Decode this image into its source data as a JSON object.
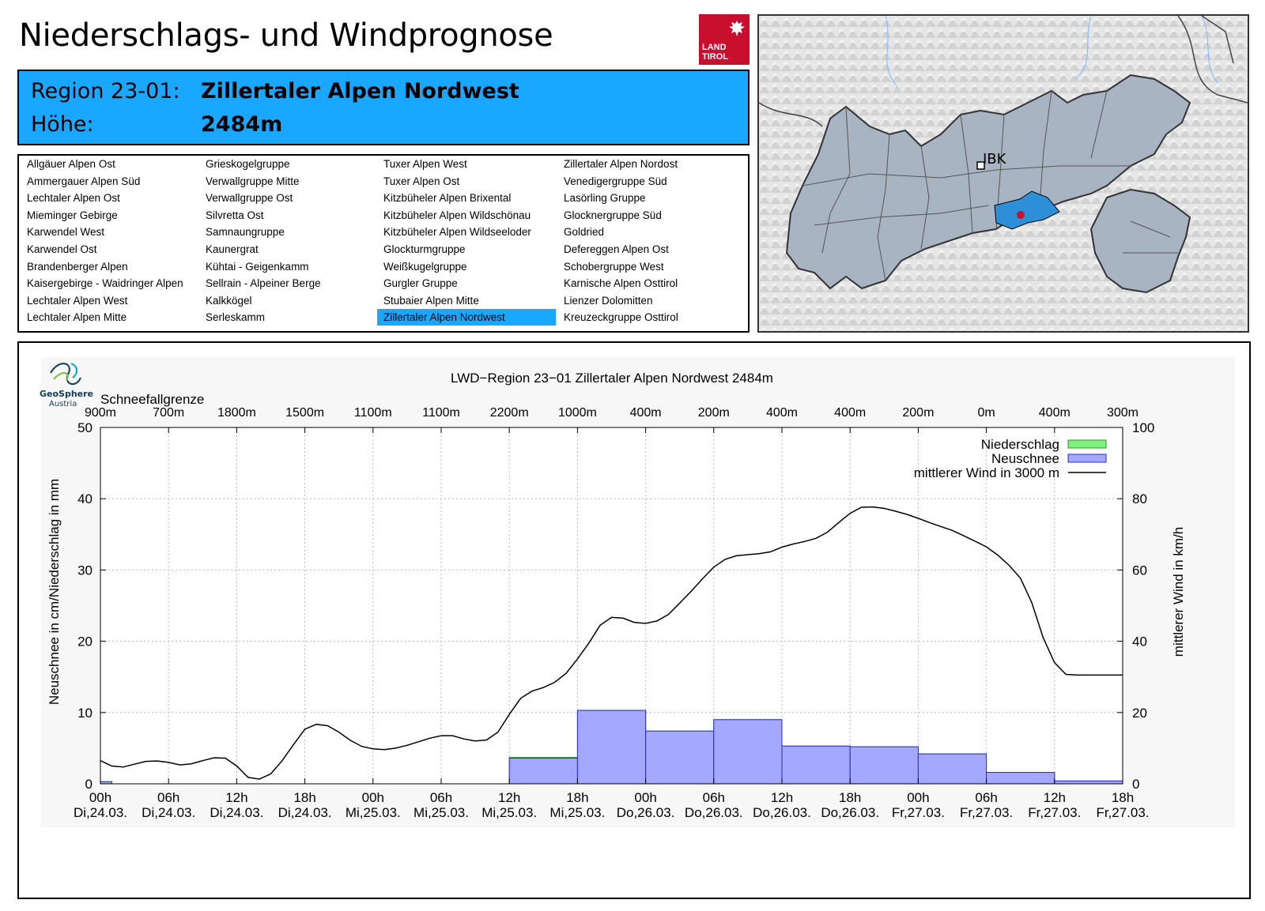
{
  "page": {
    "title": "Niederschlags- und Windprognose",
    "logo_text": [
      "LAND",
      "TIROL"
    ]
  },
  "region": {
    "region_label": "Region 23-01:",
    "region_name": "Zillertaler Alpen Nordwest",
    "height_label": "Höhe:",
    "height_value": "2484m"
  },
  "region_list": {
    "selected": "Zillertaler Alpen Nordwest",
    "columns": [
      [
        "Allgäuer Alpen Ost",
        "Ammergauer Alpen Süd",
        "Lechtaler Alpen Ost",
        "Mieminger Gebirge",
        "Karwendel West",
        "Karwendel Ost",
        "Brandenberger Alpen",
        "Kaisergebirge - Waidringer Alpen",
        "Lechtaler Alpen West",
        "Lechtaler Alpen Mitte"
      ],
      [
        "Grieskogelgruppe",
        "Verwallgruppe Mitte",
        "Verwallgruppe Ost",
        "Silvretta Ost",
        "Samnaungruppe",
        "Kaunergrat",
        "Kühtai - Geigenkamm",
        "Sellrain - Alpeiner Berge",
        "Kalkkögel",
        "Serleskamm"
      ],
      [
        "Tuxer Alpen West",
        "Tuxer Alpen Ost",
        "Kitzbüheler Alpen Brixental",
        "Kitzbüheler Alpen Wildschönau",
        "Kitzbüheler Alpen Wildseeloder",
        "Glockturmgruppe",
        "Weißkugelgruppe",
        "Gurgler Gruppe",
        "Stubaier Alpen Mitte",
        "Zillertaler Alpen Nordwest"
      ],
      [
        "Zillertaler Alpen Nordost",
        "Venedigergruppe Süd",
        "Lasörling Gruppe",
        "Glocknergruppe Süd",
        "Goldried",
        "Defereggen Alpen Ost",
        "Schobergruppe West",
        "Karnische Alpen Osttirol",
        "Lienzer Dolomitten",
        "Kreuzeckgruppe Osttirol"
      ]
    ]
  },
  "map": {
    "city_label": "IBK"
  },
  "colors": {
    "region_bg": "#1aa7ff",
    "snow_bar": "#a5a8ff",
    "precip_bar": "#7cf27c",
    "wind_line": "#000000",
    "plot_bg": "#f7f7f7"
  },
  "chart_data": {
    "type": "bar",
    "title": "LWD−Region 23−01 Zillertaler Alpen Nordwest 2484m",
    "xlabel": "",
    "ylabel": "Neuschnee in cm/Niederschlag in mm",
    "y2label": "mittlerer Wind in km/h",
    "ylim": [
      0,
      50
    ],
    "y2lim": [
      0,
      100
    ],
    "yticks": [
      0,
      10,
      20,
      30,
      40,
      50
    ],
    "y2ticks": [
      0,
      20,
      40,
      60,
      80,
      100
    ],
    "xlim_hours": [
      0,
      90
    ],
    "x_ticks": [
      {
        "h": 0,
        "time": "00h",
        "date": "Di,24.03."
      },
      {
        "h": 6,
        "time": "06h",
        "date": "Di,24.03."
      },
      {
        "h": 12,
        "time": "12h",
        "date": "Di,24.03."
      },
      {
        "h": 18,
        "time": "18h",
        "date": "Di,24.03."
      },
      {
        "h": 24,
        "time": "00h",
        "date": "Mi,25.03."
      },
      {
        "h": 30,
        "time": "06h",
        "date": "Mi,25.03."
      },
      {
        "h": 36,
        "time": "12h",
        "date": "Mi,25.03."
      },
      {
        "h": 42,
        "time": "18h",
        "date": "Mi,25.03."
      },
      {
        "h": 48,
        "time": "00h",
        "date": "Do,26.03."
      },
      {
        "h": 54,
        "time": "06h",
        "date": "Do,26.03."
      },
      {
        "h": 60,
        "time": "12h",
        "date": "Do,26.03."
      },
      {
        "h": 66,
        "time": "18h",
        "date": "Do,26.03."
      },
      {
        "h": 72,
        "time": "00h",
        "date": "Fr,27.03."
      },
      {
        "h": 78,
        "time": "06h",
        "date": "Fr,27.03."
      },
      {
        "h": 84,
        "time": "12h",
        "date": "Fr,27.03."
      },
      {
        "h": 90,
        "time": "18h",
        "date": "Fr,27.03."
      }
    ],
    "snowline_title": "Schneefallgrenze",
    "snowline": [
      "900m",
      "700m",
      "1800m",
      "1500m",
      "1100m",
      "1100m",
      "2200m",
      "1000m",
      "400m",
      "200m",
      "400m",
      "400m",
      "200m",
      "0m",
      "400m",
      "300m"
    ],
    "series": [
      {
        "name": "Niederschlag",
        "kind": "bar",
        "bars": [
          {
            "start": 0,
            "end": 1,
            "value": 0.3
          },
          {
            "start": 36,
            "end": 42,
            "value": 3.7
          },
          {
            "start": 42,
            "end": 48,
            "value": 10.3
          },
          {
            "start": 48,
            "end": 54,
            "value": 7.4
          },
          {
            "start": 54,
            "end": 60,
            "value": 9.0
          },
          {
            "start": 60,
            "end": 66,
            "value": 5.3
          },
          {
            "start": 66,
            "end": 72,
            "value": 5.2
          },
          {
            "start": 72,
            "end": 78,
            "value": 4.2
          },
          {
            "start": 78,
            "end": 84,
            "value": 1.6
          },
          {
            "start": 84,
            "end": 90,
            "value": 0.4
          }
        ]
      },
      {
        "name": "Neuschnee",
        "kind": "bar",
        "bars": [
          {
            "start": 0,
            "end": 1,
            "value": 0.3
          },
          {
            "start": 36,
            "end": 42,
            "value": 3.6
          },
          {
            "start": 42,
            "end": 48,
            "value": 10.3
          },
          {
            "start": 48,
            "end": 54,
            "value": 7.4
          },
          {
            "start": 54,
            "end": 60,
            "value": 9.0
          },
          {
            "start": 60,
            "end": 66,
            "value": 5.3
          },
          {
            "start": 66,
            "end": 72,
            "value": 5.2
          },
          {
            "start": 72,
            "end": 78,
            "value": 4.2
          },
          {
            "start": 78,
            "end": 84,
            "value": 1.6
          },
          {
            "start": 84,
            "end": 90,
            "value": 0.4
          }
        ]
      },
      {
        "name": "mittlerer Wind in 3000 m",
        "kind": "line",
        "axis": "y2",
        "x": [
          0,
          1,
          2,
          3,
          4,
          5,
          6,
          7,
          8,
          9,
          10,
          11,
          12,
          13,
          14,
          15,
          16,
          17,
          18,
          19,
          20,
          21,
          22,
          23,
          24,
          25,
          26,
          27,
          28,
          29,
          30,
          31,
          32,
          33,
          34,
          35,
          36,
          37,
          38,
          39,
          40,
          41,
          42,
          43,
          44,
          45,
          46,
          47,
          48,
          49,
          50,
          51,
          52,
          53,
          54,
          55,
          56,
          57,
          58,
          59,
          60,
          61,
          62,
          63,
          64,
          65,
          66,
          67,
          68,
          69,
          70,
          71,
          72,
          73,
          74,
          75,
          76,
          77,
          78,
          79,
          80,
          81,
          82,
          83,
          84,
          85,
          86,
          87,
          88,
          89,
          90
        ],
        "values": [
          6.5,
          5,
          4.7,
          5.5,
          6.3,
          6.4,
          6,
          5.3,
          5.6,
          6.5,
          7.3,
          7.2,
          5,
          1.8,
          1.3,
          2.8,
          6.5,
          11,
          15.3,
          16.7,
          16.3,
          14.5,
          12.2,
          10.5,
          9.8,
          9.6,
          10,
          10.8,
          11.8,
          12.8,
          13.5,
          13.5,
          12.6,
          12,
          12.3,
          14.5,
          19.5,
          24,
          26,
          27,
          28.5,
          31,
          35,
          39.5,
          44.5,
          46.7,
          46.5,
          45.3,
          45,
          45.7,
          47.5,
          50.7,
          54,
          57.5,
          60.8,
          63,
          64,
          64.3,
          64.6,
          65.1,
          66.4,
          67.3,
          68,
          68.9,
          70.6,
          73.3,
          75.9,
          77.6,
          77.7,
          77.3,
          76.5,
          75.6,
          74.5,
          73.3,
          72.2,
          71.1,
          69.6,
          68.1,
          66.5,
          64.2,
          61.3,
          57.7,
          50.8,
          41,
          34,
          30.7,
          30.5,
          30.5,
          30.5,
          30.5,
          30.5
        ]
      }
    ],
    "legend": [
      "Niederschlag",
      "Neuschnee",
      "mittlerer Wind in 3000 m"
    ],
    "legend_position": "top-right",
    "grid": true
  }
}
